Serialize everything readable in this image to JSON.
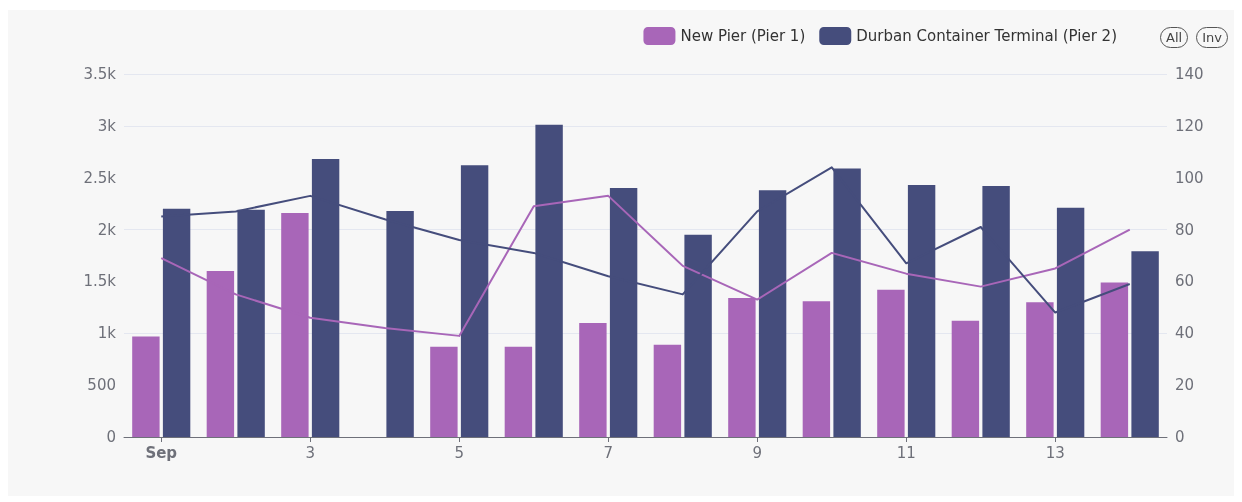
{
  "chart_data": {
    "type": "bar",
    "categories": [
      "Sep",
      null,
      "3",
      null,
      "5",
      null,
      "7",
      null,
      "9",
      null,
      "11",
      null,
      "13",
      null
    ],
    "series": [
      {
        "name": "New Pier (Pier 1)",
        "color": "#a866b8",
        "values": [
          970,
          1600,
          2160,
          null,
          870,
          870,
          1100,
          890,
          1340,
          1310,
          1420,
          1120,
          1300,
          1490
        ]
      },
      {
        "name": "Durban Container Terminal (Pier 2)",
        "color": "#454d7c",
        "values": [
          2200,
          2190,
          2680,
          2180,
          2620,
          3010,
          2400,
          1950,
          2380,
          2590,
          2430,
          2420,
          2210,
          1790
        ]
      },
      {
        "type": "line",
        "axis": "y2",
        "color": "#a866b8",
        "values": [
          69,
          55,
          46,
          42,
          39,
          89,
          93,
          66,
          53,
          71,
          63,
          58,
          65,
          80
        ]
      },
      {
        "type": "line",
        "axis": "y2",
        "color": "#454d7c",
        "values": [
          85,
          87,
          93,
          84,
          76,
          71,
          62,
          55,
          87,
          104,
          67,
          81,
          48,
          59
        ]
      }
    ],
    "ylim": [
      0,
      3500
    ],
    "yticks": [
      0,
      500,
      {
        "value": 1000,
        "label": "1k"
      },
      {
        "value": 1500,
        "label": "1.5k"
      },
      {
        "value": 2000,
        "label": "2k"
      },
      {
        "value": 2500,
        "label": "2.5k"
      },
      {
        "value": 3000,
        "label": "3k"
      },
      {
        "value": 3500,
        "label": "3.5k"
      }
    ],
    "y2lim": [
      0,
      140
    ],
    "y2ticks": [
      0,
      20,
      40,
      60,
      80,
      100,
      120,
      140
    ],
    "grid": "y",
    "legend": "top right",
    "marker": "none",
    "annotations": [
      "All",
      "Inv"
    ]
  }
}
